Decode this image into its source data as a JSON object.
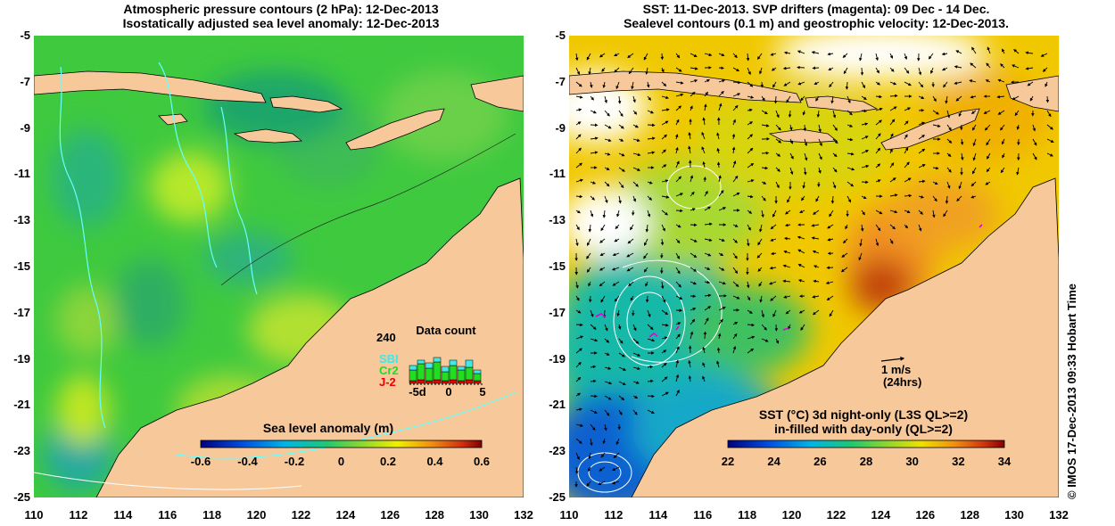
{
  "left_panel": {
    "title_line1": "Atmospheric pressure contours (2 hPa): 12-Dec-2013",
    "title_line2": "Isostatically adjusted sea level anomaly: 12-Dec-2013",
    "colorbar": {
      "label": "Sea level anomaly (m)",
      "ticks": [
        "-0.6",
        "-0.4",
        "-0.2",
        "0",
        "0.2",
        "0.4",
        "0.6"
      ],
      "range": [
        -0.6,
        0.6
      ]
    },
    "data_count": {
      "title": "Data count",
      "ymax_label": "240",
      "xticks": [
        "-5d",
        "0",
        "5"
      ],
      "legend": [
        {
          "name": "SBI",
          "color": "#44e6e6"
        },
        {
          "name": "Cr2",
          "color": "#22dd22"
        },
        {
          "name": "J-2",
          "color": "#ee0000"
        }
      ]
    }
  },
  "right_panel": {
    "title_line1": "SST: 11-Dec-2013. SVP drifters (magenta): 09 Dec - 14 Dec.",
    "title_line2": "Sealevel contours (0.1 m) and geostrophic velocity: 12-Dec-2013.",
    "colorbar": {
      "label_line1": "SST (°C)  3d night-only (L3S QL>=2)",
      "label_line2": "in-filled with day-only (QL>=2)",
      "ticks": [
        "22",
        "24",
        "26",
        "28",
        "30",
        "32",
        "34"
      ],
      "range": [
        22,
        34
      ]
    },
    "scale_arrow": {
      "label": "1 m/s",
      "sublabel": "(24hrs)"
    }
  },
  "axes": {
    "lat_ticks": [
      "-5",
      "-7",
      "-9",
      "-11",
      "-13",
      "-15",
      "-17",
      "-19",
      "-21",
      "-23",
      "-25"
    ],
    "lon_ticks": [
      "110",
      "112",
      "114",
      "116",
      "118",
      "120",
      "122",
      "124",
      "126",
      "128",
      "130",
      "132"
    ]
  },
  "credit": "© IMOS 17-Dec-2013 09:33 Hobart Time",
  "colors": {
    "land": "#f6c89a",
    "sla_ocean": "#3fc93f",
    "sst_ocean": "#f5c400"
  }
}
